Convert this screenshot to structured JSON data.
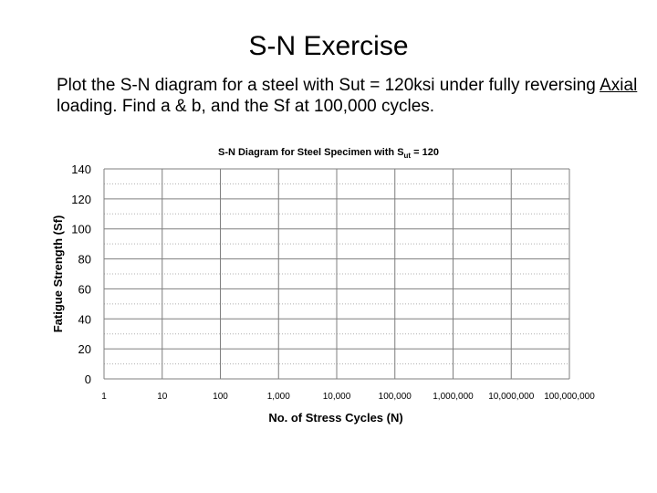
{
  "slide": {
    "title": "S-N Exercise",
    "body_part1": "Plot the S-N diagram for a steel with Sut = 120ksi under fully reversing ",
    "body_underlined": "Axial",
    "body_part2": " loading.  Find a & b, and the Sf at 100,000 cycles."
  },
  "chart_data": {
    "type": "line",
    "title_main": "S-N Diagram for Steel Specimen with S",
    "title_sub": "ut",
    "title_end": " = 120",
    "xlabel": "No. of Stress Cycles  (N)",
    "ylabel": "Fatigue Strength  (Sf)",
    "x_scale": "log",
    "x_ticks": [
      1,
      10,
      100,
      1000,
      10000,
      100000,
      1000000,
      10000000,
      100000000
    ],
    "x_tick_labels": [
      "1",
      "10",
      "100",
      "1,000",
      "10,000",
      "100,000",
      "1,000,000",
      "10,000,000",
      "100,000,000"
    ],
    "y_ticks": [
      0,
      20,
      40,
      60,
      80,
      100,
      120,
      140
    ],
    "y_tick_labels": [
      "0",
      "20",
      "40",
      "60",
      "80",
      "100",
      "120",
      "140"
    ],
    "ylim": [
      0,
      140
    ],
    "xlim": [
      1,
      100000000
    ],
    "grid": true,
    "series": [],
    "colors": {
      "grid_major": "#7f7f7f",
      "grid_minor": "#b0b0b0",
      "text": "#000000"
    }
  }
}
